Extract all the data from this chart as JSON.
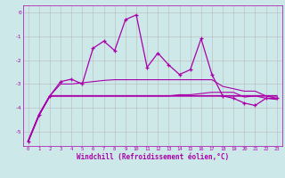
{
  "x": [
    0,
    1,
    2,
    3,
    4,
    5,
    6,
    7,
    8,
    9,
    10,
    11,
    12,
    13,
    14,
    15,
    16,
    17,
    18,
    19,
    20,
    21,
    22,
    23
  ],
  "line1": [
    -5.4,
    -4.3,
    -3.5,
    -2.9,
    -2.8,
    -3.0,
    -1.5,
    -1.2,
    -1.6,
    -0.3,
    -0.1,
    -2.3,
    -1.7,
    -2.2,
    -2.6,
    -2.4,
    -1.1,
    -2.6,
    -3.5,
    -3.6,
    -3.8,
    -3.9,
    -3.6,
    -3.6
  ],
  "line2": [
    -5.4,
    -4.3,
    -3.5,
    -3.0,
    -3.0,
    -2.95,
    -2.9,
    -2.85,
    -2.82,
    -2.82,
    -2.82,
    -2.82,
    -2.82,
    -2.82,
    -2.82,
    -2.82,
    -2.82,
    -2.82,
    -3.1,
    -3.2,
    -3.3,
    -3.3,
    -3.5,
    -3.6
  ],
  "line3": [
    -5.4,
    -4.3,
    -3.5,
    -3.5,
    -3.5,
    -3.5,
    -3.5,
    -3.5,
    -3.5,
    -3.5,
    -3.5,
    -3.5,
    -3.5,
    -3.5,
    -3.45,
    -3.45,
    -3.4,
    -3.35,
    -3.35,
    -3.35,
    -3.55,
    -3.5,
    -3.6,
    -3.65
  ],
  "line4": [
    -5.4,
    -4.3,
    -3.5,
    -3.5,
    -3.5,
    -3.5,
    -3.5,
    -3.5,
    -3.5,
    -3.5,
    -3.5,
    -3.5,
    -3.5,
    -3.5,
    -3.5,
    -3.5,
    -3.5,
    -3.5,
    -3.5,
    -3.5,
    -3.5,
    -3.5,
    -3.5,
    -3.5
  ],
  "line_color": "#aa00aa",
  "bg_color": "#cce8e8",
  "grid_color": "#bbbbbb",
  "xlabel": "Windchill (Refroidissement éolien,°C)",
  "ylim": [
    -5.6,
    0.3
  ],
  "xlim": [
    -0.5,
    23.5
  ],
  "yticks": [
    0,
    -1,
    -2,
    -3,
    -4,
    -5
  ],
  "xticks": [
    0,
    1,
    2,
    3,
    4,
    5,
    6,
    7,
    8,
    9,
    10,
    11,
    12,
    13,
    14,
    15,
    16,
    17,
    18,
    19,
    20,
    21,
    22,
    23
  ]
}
